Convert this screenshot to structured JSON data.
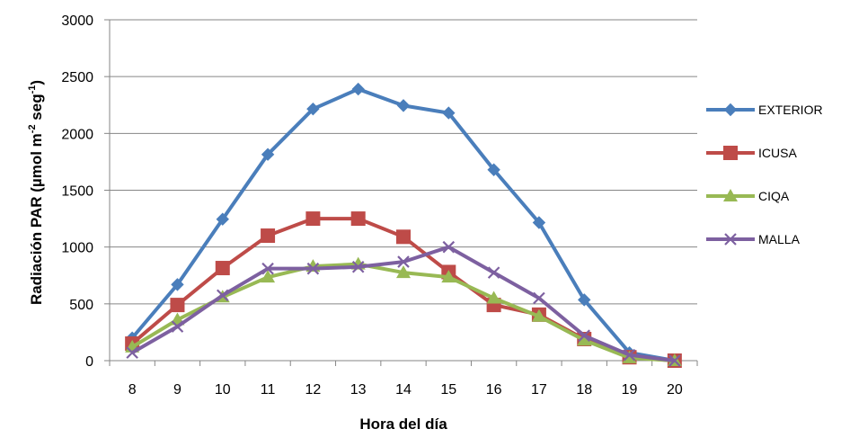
{
  "chart_data": {
    "type": "line",
    "xlabel": "Hora del día",
    "ylabel_main": "Radiación PAR (µmol m",
    "ylabel_sup1": "-2",
    "ylabel_mid": " seg",
    "ylabel_sup2": "-1",
    "ylabel_end": ")",
    "x": [
      8,
      9,
      10,
      11,
      12,
      13,
      14,
      15,
      16,
      17,
      18,
      19,
      20
    ],
    "ylim": [
      0,
      3000
    ],
    "yticks": [
      0,
      500,
      1000,
      1500,
      2000,
      2500,
      3000
    ],
    "grid": "horizontal",
    "legend_position": "right",
    "series": [
      {
        "name": "EXTERIOR",
        "color": "#4A7EBB",
        "marker": "diamond",
        "values": [
          200,
          670,
          1245,
          1815,
          2215,
          2390,
          2245,
          2180,
          1680,
          1215,
          535,
          70,
          0
        ]
      },
      {
        "name": "ICUSA",
        "color": "#BE4B48",
        "marker": "square",
        "values": [
          150,
          490,
          815,
          1100,
          1250,
          1250,
          1090,
          780,
          490,
          405,
          190,
          30,
          0
        ]
      },
      {
        "name": "CIQA",
        "color": "#98B954",
        "marker": "triangle",
        "values": [
          120,
          360,
          560,
          735,
          830,
          850,
          775,
          735,
          550,
          390,
          180,
          25,
          0
        ]
      },
      {
        "name": "MALLA",
        "color": "#7D60A0",
        "marker": "x",
        "values": [
          70,
          300,
          575,
          810,
          810,
          825,
          870,
          1000,
          775,
          550,
          220,
          50,
          0
        ]
      }
    ]
  }
}
